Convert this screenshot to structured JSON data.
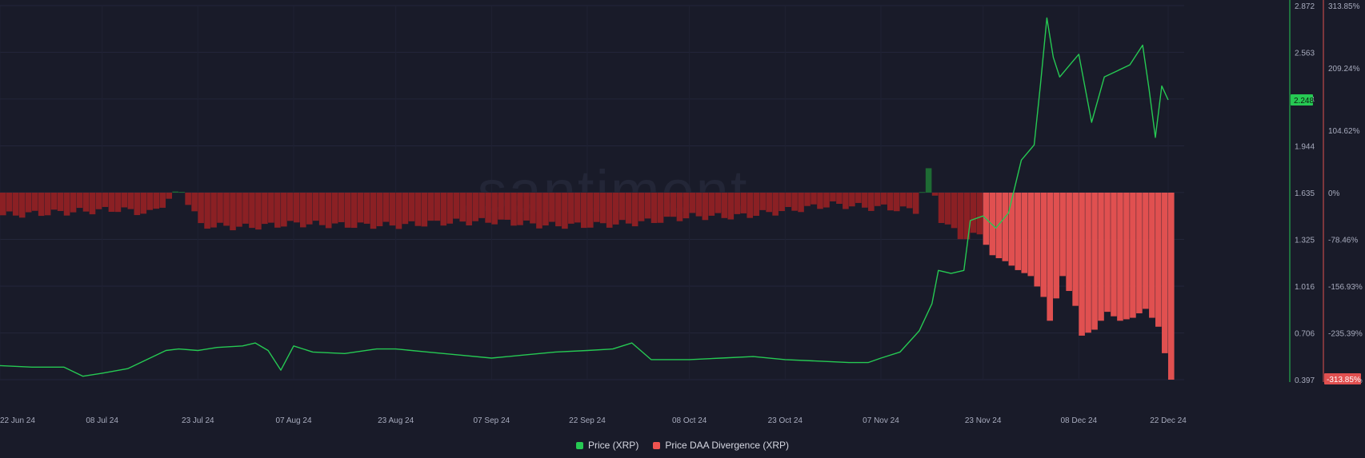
{
  "watermark": ".santiment.",
  "legend": [
    {
      "label": "Price (XRP)",
      "color": "#26c953"
    },
    {
      "label": "Price DAA Divergence (XRP)",
      "color": "#ef5350"
    }
  ],
  "chart_data": {
    "type": "line",
    "x_tick_labels": [
      "22 Jun 24",
      "08 Jul 24",
      "23 Jul 24",
      "07 Aug 24",
      "23 Aug 24",
      "07 Sep 24",
      "22 Sep 24",
      "08 Oct 24",
      "23 Oct 24",
      "07 Nov 24",
      "23 Nov 24",
      "08 Dec 24",
      "22 Dec 24"
    ],
    "price_axis": {
      "ticks": [
        "2.872",
        "2.563",
        "2.254",
        "1.944",
        "1.635",
        "1.325",
        "1.016",
        "0.706",
        "0.397"
      ],
      "ylim": [
        0.397,
        2.872
      ],
      "current_value": "2.248"
    },
    "divergence_axis": {
      "ticks": [
        "313.85%",
        "209.24%",
        "104.62%",
        "0%",
        "-78.46%",
        "-156.93%",
        "-235.39%",
        "-313.85%"
      ],
      "ylim": [
        -313.85,
        313.85
      ],
      "current_value": "-313.85%"
    },
    "series": [
      {
        "name": "Price (XRP)",
        "color": "#26c953",
        "points": [
          [
            "22 Jun 24",
            0.49
          ],
          [
            "27 Jun 24",
            0.48
          ],
          [
            "02 Jul 24",
            0.48
          ],
          [
            "05 Jul 24",
            0.42
          ],
          [
            "08 Jul 24",
            0.44
          ],
          [
            "12 Jul 24",
            0.47
          ],
          [
            "15 Jul 24",
            0.53
          ],
          [
            "18 Jul 24",
            0.59
          ],
          [
            "20 Jul 24",
            0.6
          ],
          [
            "23 Jul 24",
            0.59
          ],
          [
            "26 Jul 24",
            0.61
          ],
          [
            "30 Jul 24",
            0.62
          ],
          [
            "01 Aug 24",
            0.64
          ],
          [
            "03 Aug 24",
            0.59
          ],
          [
            "05 Aug 24",
            0.46
          ],
          [
            "07 Aug 24",
            0.62
          ],
          [
            "10 Aug 24",
            0.58
          ],
          [
            "15 Aug 24",
            0.57
          ],
          [
            "20 Aug 24",
            0.6
          ],
          [
            "23 Aug 24",
            0.6
          ],
          [
            "28 Aug 24",
            0.58
          ],
          [
            "02 Sep 24",
            0.56
          ],
          [
            "07 Sep 24",
            0.54
          ],
          [
            "12 Sep 24",
            0.56
          ],
          [
            "17 Sep 24",
            0.58
          ],
          [
            "22 Sep 24",
            0.59
          ],
          [
            "26 Sep 24",
            0.6
          ],
          [
            "29 Sep 24",
            0.64
          ],
          [
            "02 Oct 24",
            0.53
          ],
          [
            "08 Oct 24",
            0.53
          ],
          [
            "13 Oct 24",
            0.54
          ],
          [
            "18 Oct 24",
            0.55
          ],
          [
            "23 Oct 24",
            0.53
          ],
          [
            "28 Oct 24",
            0.52
          ],
          [
            "02 Nov 24",
            0.51
          ],
          [
            "05 Nov 24",
            0.51
          ],
          [
            "07 Nov 24",
            0.54
          ],
          [
            "10 Nov 24",
            0.58
          ],
          [
            "13 Nov 24",
            0.72
          ],
          [
            "15 Nov 24",
            0.9
          ],
          [
            "16 Nov 24",
            1.12
          ],
          [
            "18 Nov 24",
            1.1
          ],
          [
            "20 Nov 24",
            1.12
          ],
          [
            "21 Nov 24",
            1.45
          ],
          [
            "23 Nov 24",
            1.48
          ],
          [
            "25 Nov 24",
            1.4
          ],
          [
            "27 Nov 24",
            1.5
          ],
          [
            "29 Nov 24",
            1.85
          ],
          [
            "01 Dec 24",
            1.95
          ],
          [
            "02 Dec 24",
            2.35
          ],
          [
            "03 Dec 24",
            2.79
          ],
          [
            "04 Dec 24",
            2.53
          ],
          [
            "05 Dec 24",
            2.4
          ],
          [
            "07 Dec 24",
            2.5
          ],
          [
            "08 Dec 24",
            2.55
          ],
          [
            "10 Dec 24",
            2.1
          ],
          [
            "12 Dec 24",
            2.4
          ],
          [
            "14 Dec 24",
            2.44
          ],
          [
            "16 Dec 24",
            2.48
          ],
          [
            "18 Dec 24",
            2.61
          ],
          [
            "19 Dec 24",
            2.32
          ],
          [
            "20 Dec 24",
            2.0
          ],
          [
            "21 Dec 24",
            2.34
          ],
          [
            "22 Dec 24",
            2.248
          ]
        ]
      },
      {
        "name": "Price DAA Divergence (XRP)",
        "color": "#ef5350",
        "points": [
          [
            "22 Jun 24",
            -38
          ],
          [
            "07 Jul 24",
            -30
          ],
          [
            "10 Jul 24",
            -28
          ],
          [
            "15 Jul 24",
            -35
          ],
          [
            "20 Jul 24",
            4
          ],
          [
            "23 Jul 24",
            -55
          ],
          [
            "30 Jul 24",
            -58
          ],
          [
            "07 Aug 24",
            -52
          ],
          [
            "15 Aug 24",
            -55
          ],
          [
            "23 Aug 24",
            -55
          ],
          [
            "30 Aug 24",
            -50
          ],
          [
            "07 Sep 24",
            -48
          ],
          [
            "15 Sep 24",
            -55
          ],
          [
            "22 Sep 24",
            -55
          ],
          [
            "30 Sep 24",
            -50
          ],
          [
            "08 Oct 24",
            -40
          ],
          [
            "15 Oct 24",
            -40
          ],
          [
            "23 Oct 24",
            -30
          ],
          [
            "30 Oct 24",
            -20
          ],
          [
            "05 Nov 24",
            -25
          ],
          [
            "07 Nov 24",
            -25
          ],
          [
            "12 Nov 24",
            -30
          ],
          [
            "14 Nov 24",
            35
          ],
          [
            "16 Nov 24",
            -45
          ],
          [
            "19 Nov 24",
            -75
          ],
          [
            "22 Nov 24",
            -70
          ],
          [
            "24 Nov 24",
            -105
          ],
          [
            "26 Nov 24",
            -115
          ],
          [
            "28 Nov 24",
            -130
          ],
          [
            "30 Nov 24",
            -140
          ],
          [
            "02 Dec 24",
            -175
          ],
          [
            "03 Dec 24",
            -215
          ],
          [
            "05 Dec 24",
            -140
          ],
          [
            "07 Dec 24",
            -190
          ],
          [
            "08 Dec 24",
            -240
          ],
          [
            "10 Dec 24",
            -230
          ],
          [
            "12 Dec 24",
            -200
          ],
          [
            "14 Dec 24",
            -215
          ],
          [
            "16 Dec 24",
            -210
          ],
          [
            "18 Dec 24",
            -195
          ],
          [
            "20 Dec 24",
            -225
          ],
          [
            "22 Dec 24",
            -313.85
          ]
        ]
      }
    ],
    "grid": true,
    "legend_position": "bottom-center"
  }
}
